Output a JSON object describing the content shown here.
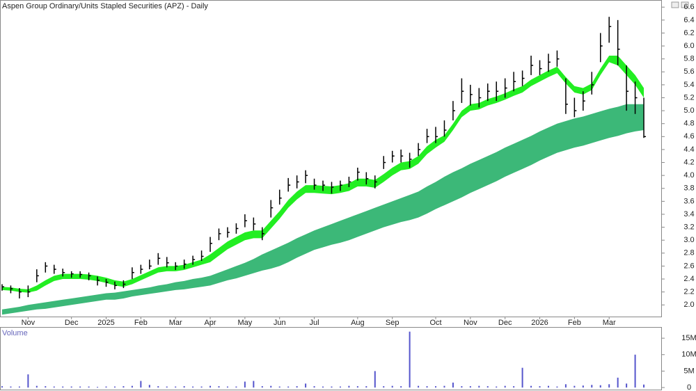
{
  "chart_data": [
    {
      "type": "ohlc",
      "title": "Aspen Group Ordinary/Units Stapled Securities (APZ) - Daily",
      "categories": [
        null,
        null,
        null,
        "Nov",
        null,
        null,
        null,
        null,
        "Dec",
        null,
        null,
        null,
        "2025",
        null,
        null,
        null,
        "Feb",
        null,
        null,
        null,
        "Mar",
        null,
        null,
        null,
        "Apr",
        null,
        null,
        null,
        "May",
        null,
        null,
        null,
        "Jun",
        null,
        null,
        null,
        "Jul",
        null,
        null,
        null,
        null,
        "Aug",
        null,
        null,
        null,
        "Sep",
        null,
        null,
        null,
        null,
        "Oct",
        null,
        null,
        null,
        "Nov",
        null,
        null,
        null,
        "Dec",
        null,
        null,
        null,
        "2026",
        null,
        null,
        null,
        "Feb",
        null,
        null,
        null,
        "Mar",
        null,
        null,
        null,
        null
      ],
      "high": [
        2.32,
        2.3,
        2.26,
        2.3,
        2.55,
        2.66,
        2.62,
        2.56,
        2.52,
        2.52,
        2.5,
        2.44,
        2.4,
        2.36,
        2.38,
        2.58,
        2.62,
        2.7,
        2.8,
        2.74,
        2.66,
        2.7,
        2.76,
        2.84,
        3.05,
        3.18,
        3.2,
        3.26,
        3.4,
        3.35,
        3.2,
        3.62,
        3.78,
        3.96,
        4.0,
        4.08,
        3.95,
        3.92,
        3.9,
        3.92,
        3.98,
        4.12,
        4.05,
        4.0,
        4.3,
        4.38,
        4.4,
        4.35,
        4.5,
        4.72,
        4.75,
        4.85,
        5.15,
        5.5,
        5.4,
        5.35,
        5.42,
        5.45,
        5.5,
        5.6,
        5.62,
        5.85,
        5.78,
        5.88,
        5.93,
        5.5,
        5.2,
        5.3,
        5.6,
        6.2,
        6.45,
        6.4,
        5.7,
        5.45,
        5.2
      ],
      "low": [
        2.22,
        2.18,
        2.1,
        2.12,
        2.35,
        2.5,
        2.48,
        2.44,
        2.42,
        2.42,
        2.38,
        2.3,
        2.28,
        2.24,
        2.26,
        2.4,
        2.48,
        2.55,
        2.62,
        2.58,
        2.54,
        2.56,
        2.62,
        2.68,
        2.82,
        3.0,
        3.04,
        3.1,
        3.2,
        3.15,
        3.0,
        3.35,
        3.55,
        3.75,
        3.8,
        3.88,
        3.78,
        3.76,
        3.72,
        3.76,
        3.82,
        3.92,
        3.86,
        3.8,
        4.1,
        4.2,
        4.2,
        4.12,
        4.3,
        4.5,
        4.5,
        4.6,
        4.85,
        5.12,
        5.08,
        5.05,
        5.15,
        5.15,
        5.2,
        5.3,
        5.38,
        5.55,
        5.55,
        5.6,
        5.68,
        4.95,
        4.9,
        5.0,
        5.25,
        5.75,
        6.05,
        5.7,
        5.0,
        4.95,
        4.58
      ],
      "close": [
        2.28,
        2.25,
        2.2,
        2.2,
        2.45,
        2.6,
        2.55,
        2.5,
        2.48,
        2.47,
        2.45,
        2.38,
        2.35,
        2.3,
        2.32,
        2.5,
        2.55,
        2.6,
        2.72,
        2.65,
        2.6,
        2.63,
        2.7,
        2.75,
        2.95,
        3.1,
        3.12,
        3.18,
        3.3,
        3.25,
        3.1,
        3.5,
        3.65,
        3.85,
        3.9,
        4.0,
        3.85,
        3.85,
        3.82,
        3.85,
        3.9,
        4.05,
        3.95,
        3.9,
        4.2,
        4.3,
        4.3,
        4.25,
        4.4,
        4.6,
        4.6,
        4.7,
        5.0,
        5.3,
        5.25,
        5.2,
        5.3,
        5.3,
        5.35,
        5.45,
        5.5,
        5.7,
        5.65,
        5.75,
        5.8,
        5.1,
        5.0,
        5.15,
        5.4,
        6.0,
        6.3,
        5.95,
        5.3,
        5.2,
        4.6
      ],
      "color": "#000000",
      "bands": [
        {
          "color": "#3cb878",
          "upper": [
            1.93,
            1.95,
            1.97,
            2.0,
            2.02,
            2.04,
            2.06,
            2.08,
            2.1,
            2.12,
            2.14,
            2.16,
            2.18,
            2.19,
            2.21,
            2.23,
            2.25,
            2.27,
            2.3,
            2.32,
            2.35,
            2.37,
            2.4,
            2.42,
            2.45,
            2.5,
            2.55,
            2.6,
            2.65,
            2.71,
            2.78,
            2.84,
            2.9,
            2.96,
            3.03,
            3.09,
            3.15,
            3.2,
            3.25,
            3.3,
            3.35,
            3.4,
            3.45,
            3.5,
            3.55,
            3.6,
            3.65,
            3.7,
            3.75,
            3.83,
            3.9,
            3.98,
            4.05,
            4.11,
            4.18,
            4.24,
            4.3,
            4.36,
            4.43,
            4.49,
            4.55,
            4.61,
            4.68,
            4.74,
            4.8,
            4.84,
            4.88,
            4.91,
            4.95,
            4.99,
            5.03,
            5.06,
            5.1,
            5.1,
            5.1
          ],
          "lower": [
            1.85,
            1.87,
            1.89,
            1.91,
            1.93,
            1.94,
            1.96,
            1.98,
            2.0,
            2.02,
            2.04,
            2.06,
            2.08,
            2.08,
            2.1,
            2.13,
            2.15,
            2.17,
            2.19,
            2.21,
            2.23,
            2.24,
            2.26,
            2.28,
            2.3,
            2.34,
            2.38,
            2.41,
            2.45,
            2.49,
            2.53,
            2.56,
            2.6,
            2.66,
            2.73,
            2.79,
            2.85,
            2.89,
            2.93,
            2.96,
            3.0,
            3.05,
            3.1,
            3.15,
            3.2,
            3.24,
            3.28,
            3.31,
            3.35,
            3.41,
            3.48,
            3.54,
            3.6,
            3.66,
            3.73,
            3.79,
            3.85,
            3.91,
            3.98,
            4.04,
            4.1,
            4.16,
            4.23,
            4.29,
            4.35,
            4.39,
            4.43,
            4.46,
            4.5,
            4.54,
            4.58,
            4.61,
            4.65,
            4.68,
            4.7
          ]
        },
        {
          "color": "#22ee22",
          "upper": [
            2.28,
            2.27,
            2.25,
            2.24,
            2.3,
            2.38,
            2.45,
            2.48,
            2.48,
            2.48,
            2.47,
            2.45,
            2.42,
            2.38,
            2.36,
            2.4,
            2.46,
            2.52,
            2.58,
            2.6,
            2.6,
            2.62,
            2.66,
            2.7,
            2.78,
            2.88,
            2.98,
            3.05,
            3.12,
            3.15,
            3.15,
            3.3,
            3.45,
            3.62,
            3.75,
            3.85,
            3.85,
            3.84,
            3.83,
            3.85,
            3.88,
            3.95,
            3.95,
            3.93,
            4.02,
            4.12,
            4.2,
            4.22,
            4.3,
            4.45,
            4.55,
            4.62,
            4.8,
            5.0,
            5.1,
            5.12,
            5.18,
            5.22,
            5.27,
            5.33,
            5.38,
            5.48,
            5.55,
            5.62,
            5.68,
            5.52,
            5.38,
            5.35,
            5.42,
            5.65,
            5.85,
            5.85,
            5.7,
            5.55,
            5.35
          ],
          "lower": [
            2.23,
            2.22,
            2.2,
            2.19,
            2.22,
            2.3,
            2.37,
            2.4,
            2.4,
            2.4,
            2.39,
            2.37,
            2.34,
            2.3,
            2.28,
            2.32,
            2.38,
            2.44,
            2.5,
            2.52,
            2.52,
            2.54,
            2.58,
            2.62,
            2.66,
            2.76,
            2.86,
            2.93,
            3.0,
            3.03,
            3.03,
            3.18,
            3.33,
            3.5,
            3.63,
            3.73,
            3.73,
            3.72,
            3.71,
            3.73,
            3.76,
            3.83,
            3.83,
            3.81,
            3.9,
            4.0,
            4.08,
            4.1,
            4.18,
            4.33,
            4.43,
            4.52,
            4.7,
            4.9,
            5.0,
            5.02,
            5.08,
            5.12,
            5.17,
            5.23,
            5.28,
            5.38,
            5.45,
            5.52,
            5.58,
            5.42,
            5.28,
            5.25,
            5.32,
            5.55,
            5.75,
            5.7,
            5.55,
            5.4,
            5.2
          ]
        }
      ],
      "ylim": [
        1.82,
        6.71
      ],
      "yticks": [
        {
          "value": 2,
          "label": "2.0"
        },
        2.2,
        2.4,
        2.6,
        2.8,
        {
          "value": 3,
          "label": "3.0"
        },
        3.2,
        3.4,
        3.6,
        3.8,
        {
          "value": 4,
          "label": "4.0"
        },
        4.2,
        4.4,
        4.6,
        4.8,
        {
          "value": 5,
          "label": "5.0"
        },
        5.2,
        5.4,
        5.6,
        5.8,
        {
          "value": 6,
          "label": "6.0"
        },
        6.2,
        6.4,
        6.6
      ]
    },
    {
      "type": "bar",
      "title": "Volume",
      "color": "#5555cc",
      "values": [
        400000,
        300000,
        300000,
        4000000,
        500000,
        400000,
        300000,
        300000,
        300000,
        300000,
        300000,
        200000,
        300000,
        300000,
        400000,
        500000,
        2000000,
        800000,
        400000,
        300000,
        300000,
        400000,
        300000,
        300000,
        500000,
        400000,
        300000,
        300000,
        1800000,
        2000000,
        400000,
        500000,
        300000,
        300000,
        400000,
        1200000,
        400000,
        300000,
        300000,
        300000,
        500000,
        400000,
        400000,
        5000000,
        400000,
        500000,
        400000,
        17000000,
        500000,
        400000,
        400000,
        500000,
        1500000,
        400000,
        400000,
        500000,
        400000,
        300000,
        500000,
        400000,
        6000000,
        500000,
        400000,
        500000,
        300000,
        1000000,
        500000,
        600000,
        800000,
        700000,
        1000000,
        3000000,
        1200000,
        10000000,
        900000
      ],
      "ylim": [
        0,
        18200000
      ],
      "yticks": [
        {
          "value": 0,
          "label": "0"
        },
        {
          "value": 5000000,
          "label": "5M"
        },
        {
          "value": 10000000,
          "label": "10M"
        },
        {
          "value": 15000000,
          "label": "15M"
        }
      ]
    }
  ]
}
